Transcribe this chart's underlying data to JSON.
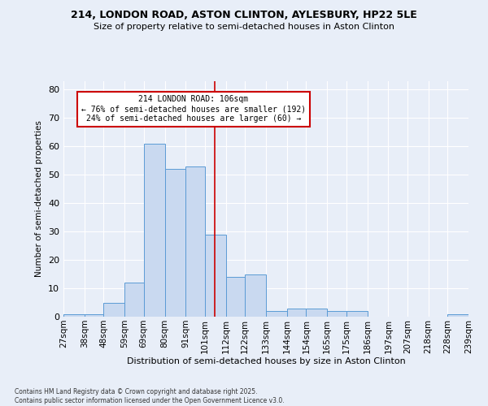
{
  "title1": "214, LONDON ROAD, ASTON CLINTON, AYLESBURY, HP22 5LE",
  "title2": "Size of property relative to semi-detached houses in Aston Clinton",
  "xlabel": "Distribution of semi-detached houses by size in Aston Clinton",
  "ylabel": "Number of semi-detached properties",
  "bins": [
    "27sqm",
    "38sqm",
    "48sqm",
    "59sqm",
    "69sqm",
    "80sqm",
    "91sqm",
    "101sqm",
    "112sqm",
    "122sqm",
    "133sqm",
    "144sqm",
    "154sqm",
    "165sqm",
    "175sqm",
    "186sqm",
    "197sqm",
    "207sqm",
    "218sqm",
    "228sqm",
    "239sqm"
  ],
  "values": [
    1,
    1,
    5,
    12,
    61,
    52,
    53,
    29,
    14,
    15,
    2,
    3,
    3,
    2,
    2,
    0,
    0,
    0,
    0,
    1
  ],
  "bar_color": "#c9d9f0",
  "bar_edge_color": "#5b9bd5",
  "bin_edges": [
    27,
    38,
    48,
    59,
    69,
    80,
    91,
    101,
    112,
    122,
    133,
    144,
    154,
    165,
    175,
    186,
    197,
    207,
    218,
    228,
    239
  ],
  "annotation_title": "214 LONDON ROAD: 106sqm",
  "annotation_line1": "← 76% of semi-detached houses are smaller (192)",
  "annotation_line2": "24% of semi-detached houses are larger (60) →",
  "vline_color": "#cc0000",
  "annotation_box_color": "#ffffff",
  "annotation_box_edge": "#cc0000",
  "footer1": "Contains HM Land Registry data © Crown copyright and database right 2025.",
  "footer2": "Contains public sector information licensed under the Open Government Licence v3.0.",
  "bg_color": "#e8eef8",
  "grid_color": "#ffffff",
  "ylim": [
    0,
    83
  ],
  "yticks": [
    0,
    10,
    20,
    30,
    40,
    50,
    60,
    70,
    80
  ]
}
